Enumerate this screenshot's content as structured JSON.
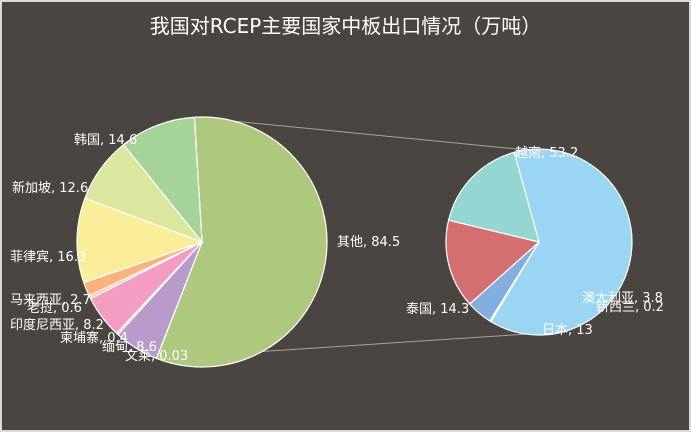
{
  "chart_data": {
    "type": "pie",
    "title": "我国对RCEP主要国家中板出口情况（万吨）",
    "main_pie": {
      "slices": [
        {
          "name": "其他",
          "value": 84.5,
          "label": "其他, 84.5",
          "color": "#aec97e"
        },
        {
          "name": "文莱",
          "value": 0.03,
          "label": "文莱, 0.03",
          "color": "#c2b4d9"
        },
        {
          "name": "缅甸",
          "value": 8.6,
          "label": "缅甸, 8.6",
          "color": "#b89acb"
        },
        {
          "name": "柬埔寨",
          "value": 0.4,
          "label": "柬埔寨, 0.4",
          "color": "#f7b6cf"
        },
        {
          "name": "印度尼西亚",
          "value": 8.2,
          "label": "印度尼西亚, 8.2",
          "color": "#f29dc1"
        },
        {
          "name": "老挝",
          "value": 0.6,
          "label": "老挝, 0.6",
          "color": "#f9c9a4"
        },
        {
          "name": "马来西亚",
          "value": 2.7,
          "label": "马来西亚, 2.7",
          "color": "#fbb27c"
        },
        {
          "name": "菲律宾",
          "value": 16.3,
          "label": "菲律宾, 16.3",
          "color": "#fbee9b"
        },
        {
          "name": "新加坡",
          "value": 12.6,
          "label": "新加坡, 12.6",
          "color": "#dbe69f"
        },
        {
          "name": "韩国",
          "value": 14.6,
          "label": "韩国, 14.6",
          "color": "#a6d398"
        }
      ]
    },
    "secondary_pie": {
      "slices": [
        {
          "name": "越南",
          "value": 53.2,
          "label": "越南, 53.2",
          "color": "#9bd5f4"
        },
        {
          "name": "新西兰",
          "value": 0.2,
          "label": "新西兰, 0.2",
          "color": "#6c95d0"
        },
        {
          "name": "澳大利亚",
          "value": 3.8,
          "label": "澳大利亚, 3.8",
          "color": "#82aee0"
        },
        {
          "name": "日本",
          "value": 13,
          "label": "日本, 13",
          "color": "#d36f70"
        },
        {
          "name": "泰国",
          "value": 14.3,
          "label": "泰国, 14.3",
          "color": "#93d6d2"
        }
      ]
    }
  }
}
